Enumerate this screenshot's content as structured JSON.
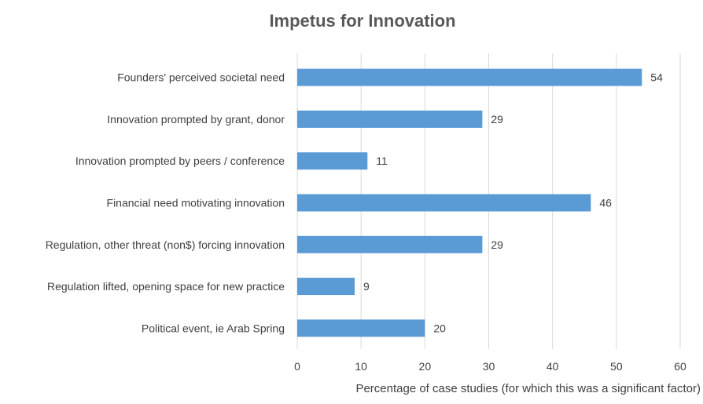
{
  "chart_data": {
    "type": "bar",
    "orientation": "horizontal",
    "title": "Impetus for Innovation",
    "xlabel": "Percentage of case studies (for which this was a significant factor)",
    "ylabel": "",
    "categories": [
      "Founders' perceived societal need",
      "Innovation prompted by grant, donor",
      "Innovation prompted by peers / conference",
      "Financial need motivating innovation",
      "Regulation, other threat (non$) forcing innovation",
      "Regulation lifted, opening space for new practice",
      "Political event, ie Arab Spring"
    ],
    "values": [
      54,
      29,
      11,
      46,
      29,
      9,
      20
    ],
    "xlim": [
      0,
      60
    ],
    "ticks": [
      0,
      10,
      20,
      30,
      40,
      50,
      60
    ],
    "grid": true,
    "legend": "none",
    "bar_color": "#5b9bd5",
    "grid_color": "#d9d9d9"
  }
}
